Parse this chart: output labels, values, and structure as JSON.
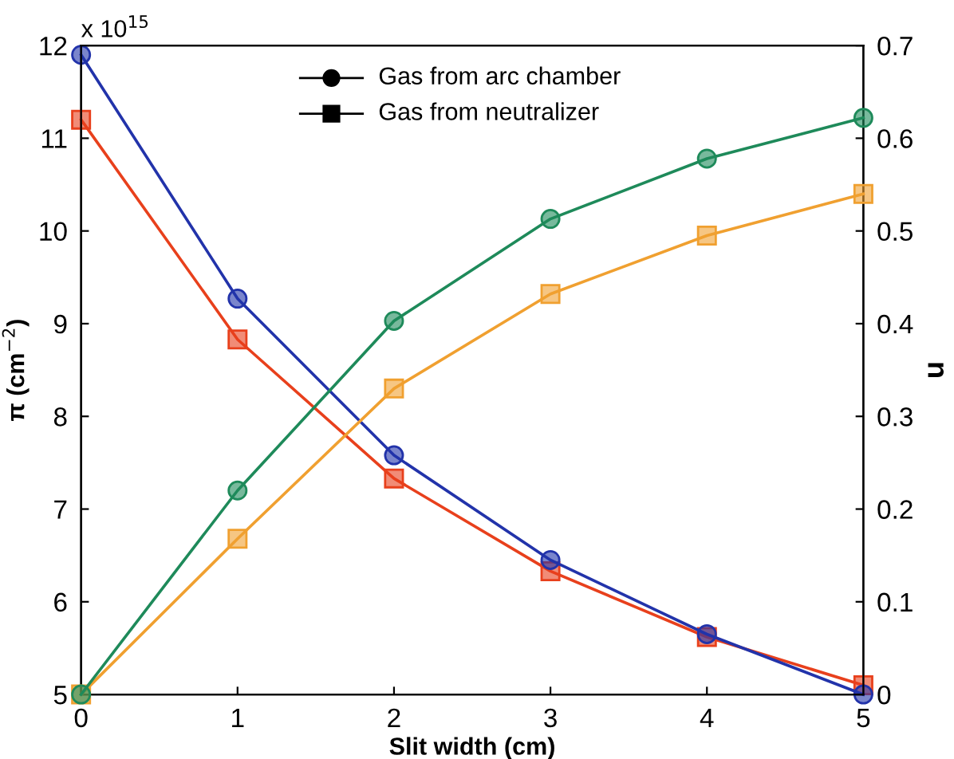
{
  "chart_data": {
    "type": "line",
    "xlabel": "Slit width (cm)",
    "ylabel": "π (cm$^{−2}$)",
    "y2label": "u",
    "annotations": [
      "x 10$^{15}$",
      "Gas from arc chamber",
      "Gas from neutralizer"
    ],
    "x": [
      0,
      1,
      2,
      3,
      4,
      5
    ],
    "xlim": [
      0,
      5
    ],
    "xticks": [
      0,
      1,
      2,
      3,
      4,
      5
    ],
    "ylim": [
      5,
      12
    ],
    "yticks": [
      5,
      6,
      7,
      8,
      9,
      10,
      11,
      12
    ],
    "y2lim": [
      0,
      0.7
    ],
    "y2ticks": [
      0,
      0.1,
      0.2,
      0.3,
      0.4,
      0.5,
      0.6,
      0.7
    ],
    "grid": false,
    "series": [
      {
        "color": "#2233aa",
        "marker": "circle",
        "values": [
          11.9,
          9.27,
          7.58,
          6.45,
          5.65,
          5.0
        ]
      },
      {
        "color": "#e8401c",
        "marker": "square",
        "values": [
          11.2,
          8.83,
          7.33,
          6.33,
          5.62,
          5.1
        ]
      },
      {
        "color": "#1e8a5a",
        "marker": "circle",
        "axis": "y2",
        "values": [
          0,
          0.22,
          0.403,
          0.513,
          0.578,
          0.622
        ]
      },
      {
        "color": "#f0a030",
        "marker": "square",
        "axis": "y2",
        "values": [
          0,
          0.168,
          0.33,
          0.432,
          0.495,
          0.54
        ]
      }
    ]
  }
}
